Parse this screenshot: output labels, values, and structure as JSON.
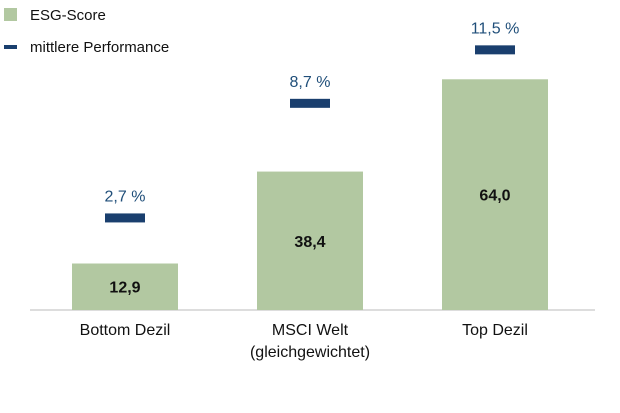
{
  "chart_data": {
    "type": "bar",
    "categories": [
      [
        "Bottom Dezil"
      ],
      [
        "MSCI Welt",
        "(gleichgewichtet)"
      ],
      [
        "Top Dezil"
      ]
    ],
    "series": [
      {
        "name": "ESG-Score",
        "kind": "bar",
        "color": "#b2c8a1",
        "values": [
          12.9,
          38.4,
          64.0
        ],
        "labels": [
          "12,9",
          "38,4",
          "64,0"
        ]
      },
      {
        "name": "mittlere Performance",
        "kind": "marker",
        "color": "#1a3f6e",
        "values": [
          2.7,
          8.7,
          11.5
        ],
        "labels": [
          "2,7 %",
          "8,7 %",
          "11,5 %"
        ]
      }
    ],
    "legend": "top-left",
    "grid": false
  }
}
